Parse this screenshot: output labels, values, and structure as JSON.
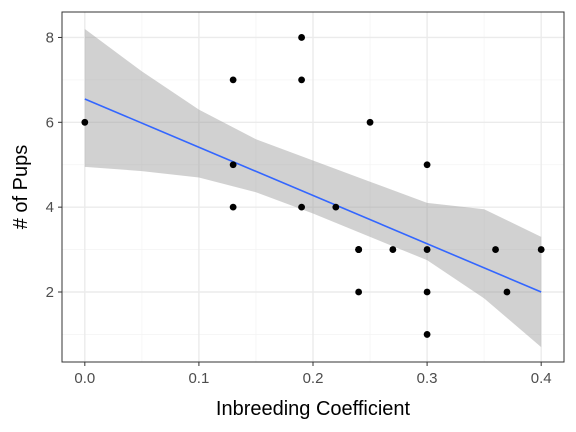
{
  "chart_data": {
    "type": "scatter",
    "xlabel": "Inbreeding Coefficient",
    "ylabel": "# of Pups",
    "xlim": [
      -0.02,
      0.42
    ],
    "ylim": [
      0.35,
      8.6
    ],
    "xticks": [
      0.0,
      0.1,
      0.2,
      0.3,
      0.4
    ],
    "xtick_labels": [
      "0.0",
      "0.1",
      "0.2",
      "0.3",
      "0.4"
    ],
    "xminor": [
      0.05,
      0.15,
      0.25,
      0.35
    ],
    "yticks": [
      2,
      4,
      6,
      8
    ],
    "ytick_labels": [
      "2",
      "4",
      "6",
      "8"
    ],
    "yminor": [
      1,
      3,
      5,
      7
    ],
    "grid": true,
    "theme": "bw",
    "points": [
      {
        "x": 0.0,
        "y": 6
      },
      {
        "x": 0.13,
        "y": 7
      },
      {
        "x": 0.13,
        "y": 5
      },
      {
        "x": 0.13,
        "y": 4
      },
      {
        "x": 0.19,
        "y": 8
      },
      {
        "x": 0.19,
        "y": 7
      },
      {
        "x": 0.19,
        "y": 4
      },
      {
        "x": 0.22,
        "y": 4
      },
      {
        "x": 0.24,
        "y": 3
      },
      {
        "x": 0.24,
        "y": 3
      },
      {
        "x": 0.24,
        "y": 3
      },
      {
        "x": 0.24,
        "y": 2
      },
      {
        "x": 0.25,
        "y": 6
      },
      {
        "x": 0.27,
        "y": 3
      },
      {
        "x": 0.3,
        "y": 5
      },
      {
        "x": 0.3,
        "y": 3
      },
      {
        "x": 0.3,
        "y": 2
      },
      {
        "x": 0.3,
        "y": 1
      },
      {
        "x": 0.36,
        "y": 3
      },
      {
        "x": 0.37,
        "y": 2
      },
      {
        "x": 0.4,
        "y": 3
      }
    ],
    "fit": {
      "x": [
        0.0,
        0.05,
        0.1,
        0.15,
        0.2,
        0.25,
        0.3,
        0.35,
        0.4
      ],
      "y": [
        6.55,
        6.03,
        5.51,
        4.99,
        4.47,
        3.95,
        3.43,
        2.91,
        2.0
      ],
      "lower": [
        4.95,
        4.85,
        4.7,
        4.35,
        3.85,
        3.3,
        2.75,
        1.85,
        0.7
      ],
      "upper": [
        8.2,
        7.2,
        6.3,
        5.6,
        5.1,
        4.6,
        4.1,
        3.95,
        3.3
      ]
    },
    "colors": {
      "point": "#000000",
      "line": "#3366ff",
      "ribbon": "#999999",
      "grid_major": "#ebebeb",
      "grid_minor": "#f4f4f4",
      "panel_border": "#333333",
      "background": "#ffffff"
    }
  }
}
